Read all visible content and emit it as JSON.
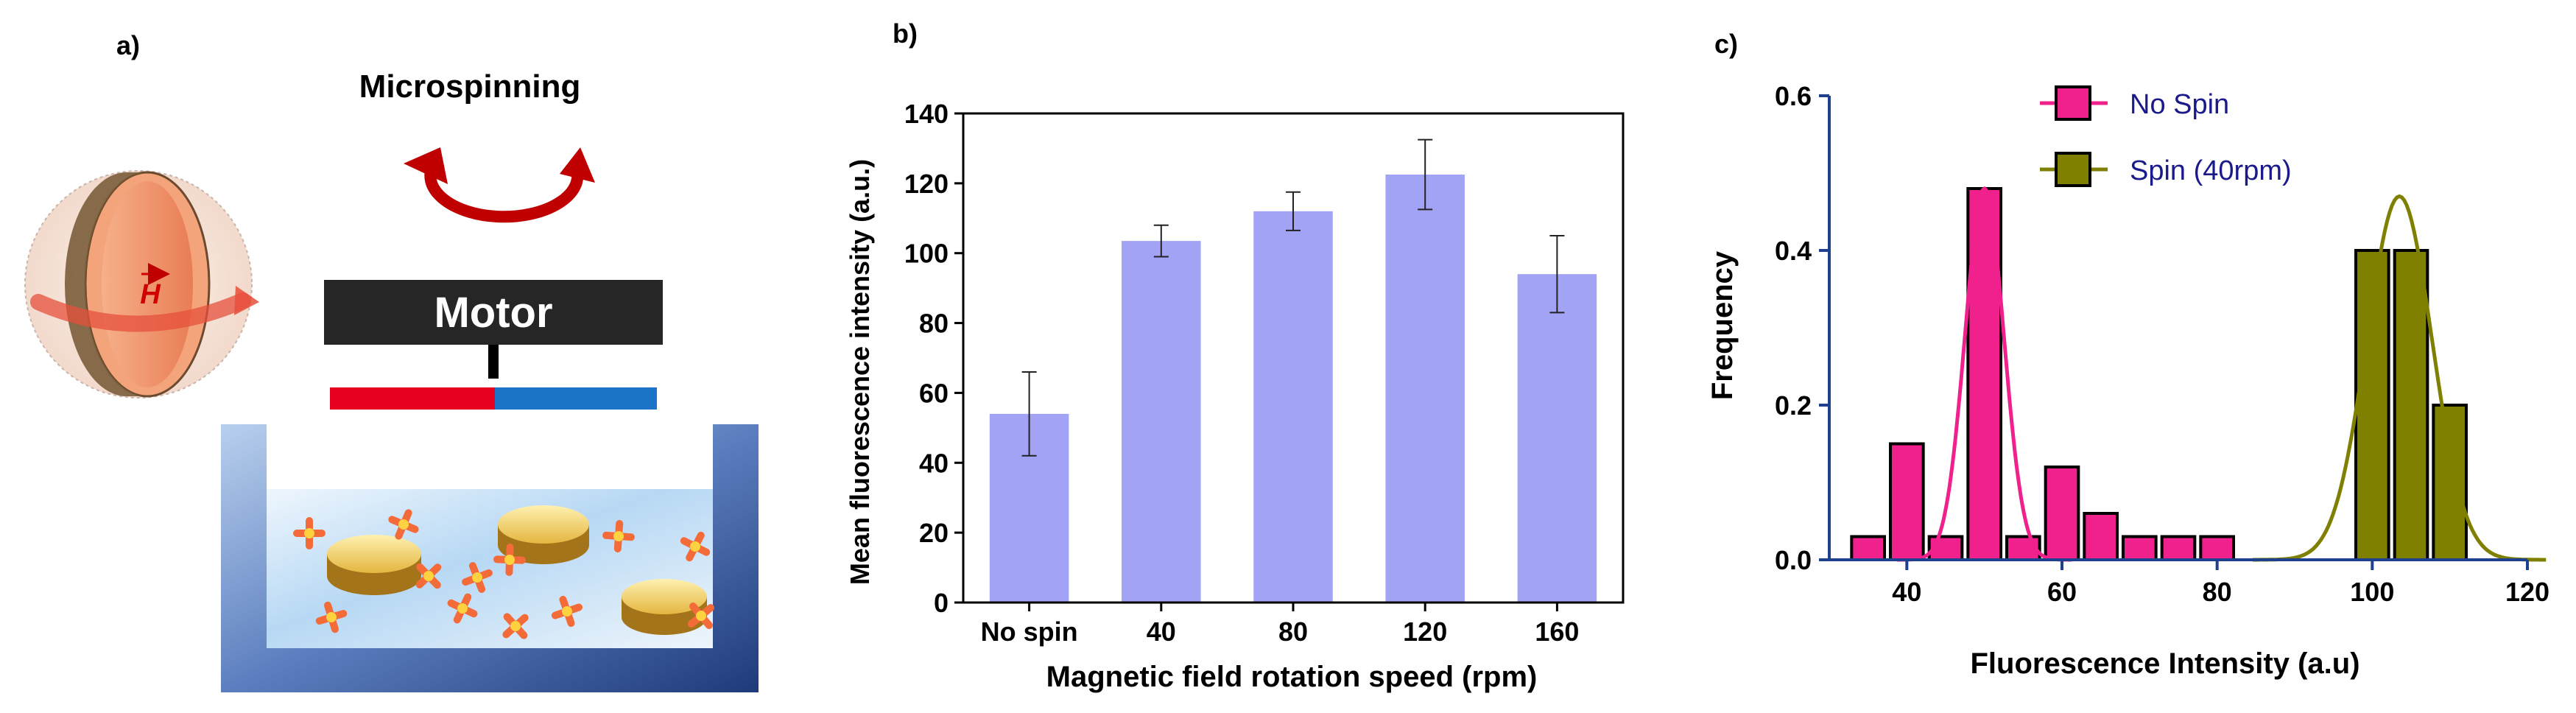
{
  "panel_a": {
    "label": "a)",
    "title": "Microspinning",
    "motor_label": "Motor",
    "field_symbol": "H"
  },
  "chart_data": [
    {
      "panel_label": "b)",
      "type": "bar",
      "categories": [
        "No spin",
        "40",
        "80",
        "120",
        "160"
      ],
      "values": [
        54,
        103.5,
        112,
        122.5,
        94
      ],
      "errors": [
        12,
        4.5,
        5.5,
        10,
        11
      ],
      "ylim": [
        0,
        140
      ],
      "yticks": [
        0,
        20,
        40,
        60,
        80,
        100,
        120,
        140
      ],
      "xlabel": "Magnetic field rotation speed (rpm)",
      "ylabel": "Mean fluorescence intensity (a.u.)",
      "bar_color": "#a3a3f5"
    },
    {
      "panel_label": "c)",
      "type": "histogram",
      "xlabel": "Fluorescence Intensity (a.u)",
      "ylabel": "Frequency",
      "xlim": [
        30,
        120
      ],
      "ylim": [
        0,
        0.6
      ],
      "xticks": [
        40,
        60,
        80,
        100,
        120
      ],
      "yticks": [
        "0.0",
        "0.2",
        "0.4",
        "0.6"
      ],
      "bin_width": 5,
      "series": [
        {
          "name": "No Spin",
          "color": "#f0208c",
          "bins": [
            35,
            40,
            45,
            50,
            55,
            60,
            65,
            70,
            75,
            80
          ],
          "values": [
            0.03,
            0.15,
            0.03,
            0.48,
            0.03,
            0.12,
            0.06,
            0.03,
            0.03,
            0.03
          ],
          "fit": {
            "mean": 50,
            "sd": 2.5,
            "amp": 0.48
          }
        },
        {
          "name": "Spin (40rpm)",
          "color": "#7f7f00",
          "bins": [
            100,
            105,
            110
          ],
          "values": [
            0.4,
            0.4,
            0.2
          ],
          "fit": {
            "mean": 103.5,
            "sd": 4.2,
            "amp": 0.47
          }
        }
      ]
    }
  ]
}
